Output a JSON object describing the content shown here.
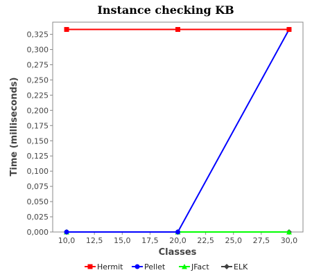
{
  "chart_data": {
    "type": "line",
    "title": "Instance checking KB",
    "xlabel": "Classes",
    "ylabel": "Time (milliseconds)",
    "xlim": [
      8.75,
      31.25
    ],
    "ylim": [
      0,
      0.345
    ],
    "x_ticks": [
      "10,0",
      "12,5",
      "15,0",
      "17,5",
      "20,0",
      "22,5",
      "25,0",
      "27,5",
      "30,0"
    ],
    "x_tick_values": [
      10,
      12.5,
      15,
      17.5,
      20,
      22.5,
      25,
      27.5,
      30
    ],
    "y_ticks": [
      "0,000",
      "0,025",
      "0,050",
      "0,075",
      "0,100",
      "0,125",
      "0,150",
      "0,175",
      "0,200",
      "0,225",
      "0,250",
      "0,275",
      "0,300",
      "0,325"
    ],
    "y_tick_values": [
      0,
      0.025,
      0.05,
      0.075,
      0.1,
      0.125,
      0.15,
      0.175,
      0.2,
      0.225,
      0.25,
      0.275,
      0.3,
      0.325
    ],
    "grid": false,
    "legend_position": "bottom",
    "x": [
      10,
      20,
      30
    ],
    "series": [
      {
        "name": "Hermit",
        "values": [
          0.333,
          0.333,
          0.333
        ],
        "color": "#ff0000",
        "marker": "square"
      },
      {
        "name": "Pellet",
        "values": [
          0,
          0,
          0.333
        ],
        "color": "#0000ff",
        "marker": "circle"
      },
      {
        "name": "JFact",
        "values": [
          0,
          0,
          0
        ],
        "color": "#00ff00",
        "marker": "triangle"
      },
      {
        "name": "ELK",
        "values": [
          0,
          0,
          0
        ],
        "color": "#404040",
        "marker": "diamond"
      }
    ]
  }
}
